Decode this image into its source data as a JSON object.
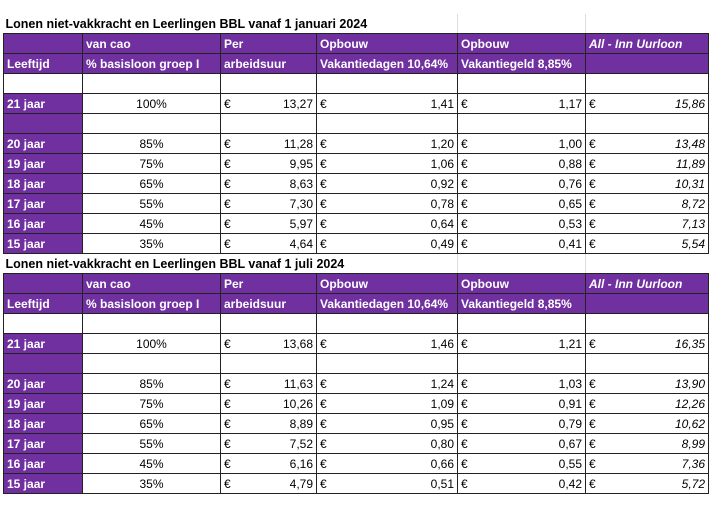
{
  "colors": {
    "purple": "#7030A0"
  },
  "blocks": [
    {
      "title": "Lonen niet-vakkracht en Leerlingen BBL vanaf 1 januari 2024",
      "header1": [
        "",
        "van cao",
        "Per",
        "Opbouw",
        "Opbouw",
        "All - Inn Uurloon"
      ],
      "header2": [
        "Leeftijd",
        "% basisloon groep I",
        "arbeidsuur",
        "Vakantiedagen 10,64%",
        "Vakantiegeld 8,85%",
        ""
      ],
      "currency": "€",
      "top_row": {
        "age": "21 jaar",
        "pct": "100%",
        "hourly": "13,27",
        "vac_days": "1,41",
        "vac_pay": "1,17",
        "all_in": "15,86"
      },
      "rows": [
        {
          "age": "20 jaar",
          "pct": "85%",
          "hourly": "11,28",
          "vac_days": "1,20",
          "vac_pay": "1,00",
          "all_in": "13,48"
        },
        {
          "age": "19 jaar",
          "pct": "75%",
          "hourly": "9,95",
          "vac_days": "1,06",
          "vac_pay": "0,88",
          "all_in": "11,89"
        },
        {
          "age": "18 jaar",
          "pct": "65%",
          "hourly": "8,63",
          "vac_days": "0,92",
          "vac_pay": "0,76",
          "all_in": "10,31"
        },
        {
          "age": "17 jaar",
          "pct": "55%",
          "hourly": "7,30",
          "vac_days": "0,78",
          "vac_pay": "0,65",
          "all_in": "8,72"
        },
        {
          "age": "16 jaar",
          "pct": "45%",
          "hourly": "5,97",
          "vac_days": "0,64",
          "vac_pay": "0,53",
          "all_in": "7,13"
        },
        {
          "age": "15 jaar",
          "pct": "35%",
          "hourly": "4,64",
          "vac_days": "0,49",
          "vac_pay": "0,41",
          "all_in": "5,54"
        }
      ]
    },
    {
      "title": "Lonen niet-vakkracht en Leerlingen BBL vanaf 1 juli 2024",
      "header1": [
        "",
        "van cao",
        "Per",
        "Opbouw",
        "Opbouw",
        "All - Inn Uurloon"
      ],
      "header2": [
        "Leeftijd",
        "% basisloon groep I",
        "arbeidsuur",
        "Vakantiedagen 10,64%",
        "Vakantiegeld 8,85%",
        ""
      ],
      "currency": "€",
      "top_row": {
        "age": "21 jaar",
        "pct": "100%",
        "hourly": "13,68",
        "vac_days": "1,46",
        "vac_pay": "1,21",
        "all_in": "16,35"
      },
      "rows": [
        {
          "age": "20 jaar",
          "pct": "85%",
          "hourly": "11,63",
          "vac_days": "1,24",
          "vac_pay": "1,03",
          "all_in": "13,90"
        },
        {
          "age": "19 jaar",
          "pct": "75%",
          "hourly": "10,26",
          "vac_days": "1,09",
          "vac_pay": "0,91",
          "all_in": "12,26"
        },
        {
          "age": "18 jaar",
          "pct": "65%",
          "hourly": "8,89",
          "vac_days": "0,95",
          "vac_pay": "0,79",
          "all_in": "10,62"
        },
        {
          "age": "17 jaar",
          "pct": "55%",
          "hourly": "7,52",
          "vac_days": "0,80",
          "vac_pay": "0,67",
          "all_in": "8,99"
        },
        {
          "age": "16 jaar",
          "pct": "45%",
          "hourly": "6,16",
          "vac_days": "0,66",
          "vac_pay": "0,55",
          "all_in": "7,36"
        },
        {
          "age": "15 jaar",
          "pct": "35%",
          "hourly": "4,79",
          "vac_days": "0,51",
          "vac_pay": "0,42",
          "all_in": "5,72"
        }
      ]
    }
  ]
}
